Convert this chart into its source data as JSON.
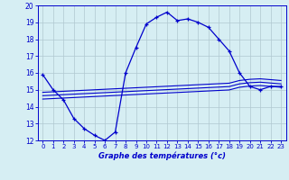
{
  "title": "Graphe des températures (°c)",
  "bg_color": "#d6eef3",
  "grid_color": "#b0c8d0",
  "line_color": "#0000cc",
  "spine_color": "#0000cc",
  "xlim": [
    -0.5,
    23.5
  ],
  "ylim": [
    12,
    20
  ],
  "yticks": [
    12,
    13,
    14,
    15,
    16,
    17,
    18,
    19,
    20
  ],
  "xticks": [
    0,
    1,
    2,
    3,
    4,
    5,
    6,
    7,
    8,
    9,
    10,
    11,
    12,
    13,
    14,
    15,
    16,
    17,
    18,
    19,
    20,
    21,
    22,
    23
  ],
  "main_temp": [
    15.9,
    15.0,
    14.4,
    13.3,
    12.7,
    12.3,
    12.0,
    12.5,
    16.0,
    17.5,
    18.9,
    19.3,
    19.6,
    19.1,
    19.2,
    19.0,
    18.7,
    18.0,
    17.3,
    16.0,
    15.2,
    15.0,
    15.2,
    15.2
  ],
  "avg_line1": [
    14.85,
    14.88,
    14.91,
    14.94,
    14.97,
    15.0,
    15.03,
    15.06,
    15.09,
    15.12,
    15.15,
    15.18,
    15.21,
    15.24,
    15.27,
    15.3,
    15.33,
    15.36,
    15.39,
    15.55,
    15.62,
    15.65,
    15.6,
    15.55
  ],
  "avg_line2": [
    14.65,
    14.68,
    14.71,
    14.74,
    14.77,
    14.8,
    14.83,
    14.86,
    14.89,
    14.92,
    14.95,
    14.98,
    15.01,
    15.04,
    15.07,
    15.1,
    15.13,
    15.16,
    15.19,
    15.35,
    15.42,
    15.45,
    15.4,
    15.35
  ],
  "avg_line3": [
    14.45,
    14.48,
    14.51,
    14.54,
    14.57,
    14.6,
    14.63,
    14.66,
    14.69,
    14.72,
    14.75,
    14.78,
    14.81,
    14.84,
    14.87,
    14.9,
    14.93,
    14.96,
    14.99,
    15.15,
    15.22,
    15.25,
    15.2,
    15.15
  ]
}
